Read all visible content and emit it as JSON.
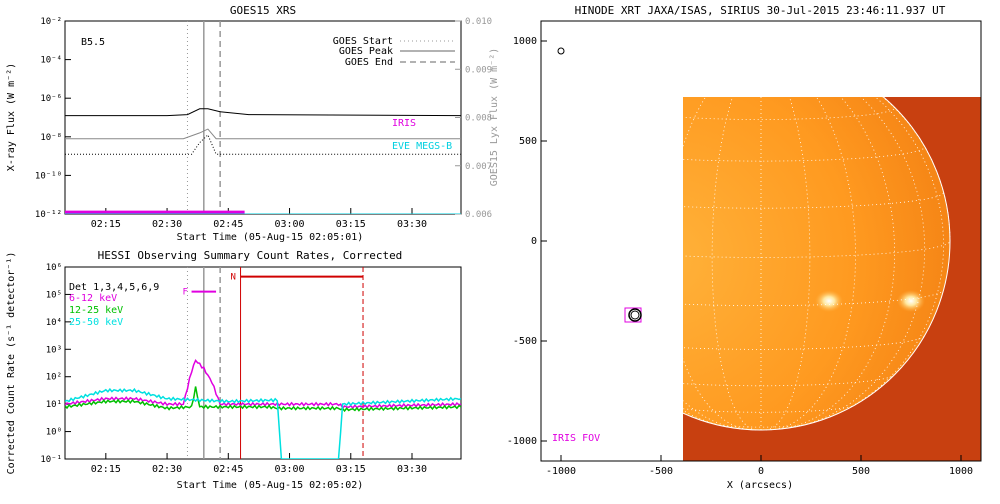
{
  "chart_data": [
    {
      "type": "line",
      "title": "GOES15 XRS",
      "class_label": "B5.5",
      "ylabel": "X-ray Flux (W m⁻²)",
      "y2label": "GOES15 Lyx Flux (W m⁻²)",
      "xlabel": "Start Time (05-Aug-15 02:05:01)",
      "x_ticks": [
        "02:15",
        "02:30",
        "02:45",
        "03:00",
        "03:15",
        "03:30"
      ],
      "x_tick_minutes": [
        15,
        30,
        45,
        60,
        75,
        90
      ],
      "x_range_minutes": [
        5,
        102
      ],
      "y_ticks": [
        "10⁻¹²",
        "10⁻¹⁰",
        "10⁻⁸",
        "10⁻⁶",
        "10⁻⁴",
        "10⁻²"
      ],
      "y_tick_exp": [
        -12,
        -10,
        -8,
        -6,
        -4,
        -2
      ],
      "y_exp_range": [
        -12,
        -2
      ],
      "y2_ticks": [
        "0.006",
        "0.007",
        "0.008",
        "0.009",
        "0.010"
      ],
      "y2_tick_values": [
        0.006,
        0.007,
        0.008,
        0.009,
        0.01
      ],
      "y2_range": [
        0.006,
        0.01
      ],
      "legend": [
        {
          "label": "GOES Start",
          "style": "dotted"
        },
        {
          "label": "GOES Peak",
          "style": "solid"
        },
        {
          "label": "GOES End",
          "style": "dashed"
        }
      ],
      "goes_start_min": 35,
      "goes_peak_min": 39,
      "goes_end_min": 43,
      "series": [
        {
          "name": "",
          "color": "#000000",
          "log10_values": [
            [
              5,
              -6.9
            ],
            [
              30,
              -6.9
            ],
            [
              35,
              -6.85
            ],
            [
              38,
              -6.55
            ],
            [
              40,
              -6.55
            ],
            [
              43,
              -6.7
            ],
            [
              50,
              -6.85
            ],
            [
              102,
              -6.9
            ]
          ]
        },
        {
          "name": "",
          "color": "#888888",
          "log10_values": [
            [
              5,
              -8.1
            ],
            [
              34,
              -8.1
            ],
            [
              38,
              -7.8
            ],
            [
              40,
              -7.6
            ],
            [
              42,
              -8.1
            ],
            [
              102,
              -8.1
            ]
          ]
        },
        {
          "name": "",
          "color": "#000000",
          "dotted": true,
          "log10_values": [
            [
              5,
              -8.9
            ],
            [
              36,
              -8.9
            ],
            [
              38,
              -8.3
            ],
            [
              40,
              -7.9
            ],
            [
              42,
              -8.9
            ],
            [
              102,
              -8.9
            ]
          ]
        },
        {
          "name": "IRIS",
          "color": "#e000e0",
          "log10_values": [
            [
              5,
              -11.9
            ],
            [
              49,
              -11.9
            ]
          ]
        },
        {
          "name": "EVE MEGS-B",
          "color": "#00d0e0",
          "log10_values": [
            [
              5,
              -12.05
            ],
            [
              102,
              -12.05
            ]
          ]
        }
      ]
    },
    {
      "type": "line",
      "title": "HESSI Observing Summary Count Rates, Corrected",
      "ylabel": "Corrected Count Rate (s⁻¹ detector⁻¹)",
      "xlabel": "Start Time (05-Aug-15 02:05:02)",
      "detector_label": "Det 1,3,4,5,6,9",
      "x_ticks": [
        "02:15",
        "02:30",
        "02:45",
        "03:00",
        "03:15",
        "03:30"
      ],
      "x_tick_minutes": [
        15,
        30,
        45,
        60,
        75,
        90
      ],
      "x_range_minutes": [
        5,
        102
      ],
      "y_ticks": [
        "10⁻¹",
        "10⁰",
        "10¹",
        "10²",
        "10³",
        "10⁴",
        "10⁵",
        "10⁶"
      ],
      "y_tick_exp": [
        -1,
        0,
        1,
        2,
        3,
        4,
        5,
        6
      ],
      "y_exp_range": [
        -1,
        6
      ],
      "markers": {
        "F_label": "F",
        "N_label": "N",
        "flare_start_min": 36,
        "flare_end_min": 42,
        "night_start_min": 48,
        "night_end_min": 78
      },
      "series": [
        {
          "name": "6-12 keV",
          "color": "#e000e0",
          "log10_values": [
            [
              5,
              1.0
            ],
            [
              15,
              1.2
            ],
            [
              22,
              1.2
            ],
            [
              30,
              1.0
            ],
            [
              34,
              1.0
            ],
            [
              36,
              2.2
            ],
            [
              37,
              2.6
            ],
            [
              39,
              2.3
            ],
            [
              41,
              1.8
            ],
            [
              43,
              1.0
            ],
            [
              55,
              1.0
            ],
            [
              57,
              1.0
            ],
            [
              72,
              1.0
            ],
            [
              73,
              0.9
            ],
            [
              102,
              1.0
            ]
          ]
        },
        {
          "name": "12-25 keV",
          "color": "#00c000",
          "log10_values": [
            [
              5,
              0.9
            ],
            [
              15,
              1.1
            ],
            [
              22,
              1.1
            ],
            [
              30,
              0.85
            ],
            [
              36,
              0.9
            ],
            [
              37,
              1.6
            ],
            [
              38,
              0.9
            ],
            [
              55,
              0.9
            ],
            [
              57,
              0.85
            ],
            [
              72,
              0.85
            ],
            [
              73,
              0.8
            ],
            [
              102,
              0.9
            ]
          ]
        },
        {
          "name": "25-50 keV",
          "color": "#00e0e0",
          "log10_values": [
            [
              5,
              1.1
            ],
            [
              15,
              1.5
            ],
            [
              22,
              1.5
            ],
            [
              30,
              1.2
            ],
            [
              45,
              1.1
            ],
            [
              57,
              1.15
            ],
            [
              58,
              -1.0
            ],
            [
              72,
              -1.0
            ],
            [
              73,
              1.0
            ],
            [
              102,
              1.2
            ]
          ]
        }
      ]
    },
    {
      "type": "heatmap",
      "title": "HINODE XRT JAXA/ISAS, SIRIUS 30-Jul-2015 23:46:11.937 UT",
      "xlabel": "X (arcsecs)",
      "ylabel": "",
      "x_ticks": [
        "-1000",
        "-500",
        "0",
        "500",
        "1000"
      ],
      "x_tick_values": [
        -1000,
        -500,
        0,
        500,
        1000
      ],
      "y_ticks": [
        "-1000",
        "-500",
        "0",
        "500",
        "1000"
      ],
      "y_tick_values": [
        -1000,
        -500,
        0,
        500,
        1000
      ],
      "x_range": [
        -1100,
        1100
      ],
      "y_range": [
        -1100,
        1100
      ],
      "image_extent": {
        "x": [
          -390,
          1100
        ],
        "y": [
          -1100,
          720
        ]
      },
      "solar_radius": 945,
      "bright_regions": [
        [
          340,
          -300
        ],
        [
          750,
          -300
        ]
      ],
      "iris_box": {
        "x": -640,
        "y": -370
      },
      "iris_label": "IRIS FOV",
      "circle_marker": {
        "x": -1000,
        "y": 950
      }
    }
  ]
}
